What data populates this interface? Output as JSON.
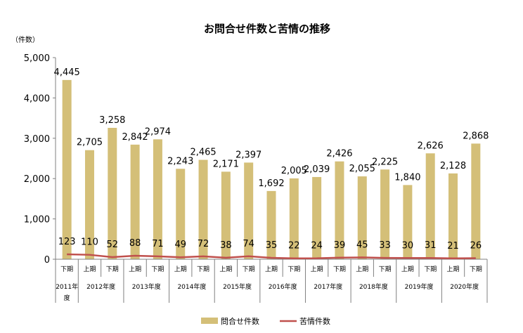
{
  "chart_data": {
    "type": "bar",
    "title": "お問合せ件数と苦情の推移",
    "ylabel": "（件数）",
    "ylim": [
      0,
      5000
    ],
    "yticks": [
      "0",
      "1,000",
      "2,000",
      "3,000",
      "4,000",
      "5,000"
    ],
    "grid": false,
    "legend_position": "bottom",
    "periods": [
      "下期",
      "上期",
      "下期",
      "上期",
      "下期",
      "上期",
      "下期",
      "上期",
      "下期",
      "上期",
      "下期",
      "上期",
      "下期",
      "上期",
      "下期",
      "上期",
      "下期",
      "上期",
      "下期"
    ],
    "years": [
      {
        "label": "2011年\n度",
        "span": 1
      },
      {
        "label": "2012年度",
        "span": 2
      },
      {
        "label": "2013年度",
        "span": 2
      },
      {
        "label": "2014年度",
        "span": 2
      },
      {
        "label": "2015年度",
        "span": 2
      },
      {
        "label": "2016年度",
        "span": 2
      },
      {
        "label": "2017年度",
        "span": 2
      },
      {
        "label": "2018年度",
        "span": 2
      },
      {
        "label": "2019年度",
        "span": 2
      },
      {
        "label": "2020年度",
        "span": 2
      }
    ],
    "series": [
      {
        "name": "問合せ件数",
        "type": "bar",
        "color": "#d4bf78",
        "values": [
          4445,
          2705,
          3258,
          2842,
          2974,
          2243,
          2465,
          2171,
          2397,
          1692,
          2005,
          2039,
          2426,
          2055,
          2225,
          1840,
          2626,
          2128,
          2868
        ],
        "labels": [
          "4,445",
          "2,705",
          "3,258",
          "2,842",
          "2,974",
          "2,243",
          "2,465",
          "2,171",
          "2,397",
          "1,692",
          "2,005",
          "2,039",
          "2,426",
          "2,055",
          "2,225",
          "1,840",
          "2,626",
          "2,128",
          "2,868"
        ]
      },
      {
        "name": "苦情件数",
        "type": "line",
        "color": "#c0504d",
        "values": [
          123,
          110,
          52,
          88,
          71,
          49,
          72,
          38,
          74,
          35,
          22,
          24,
          39,
          45,
          33,
          30,
          31,
          21,
          26
        ],
        "labels": [
          "123",
          "110",
          "52",
          "88",
          "71",
          "49",
          "72",
          "38",
          "74",
          "35",
          "22",
          "24",
          "39",
          "45",
          "33",
          "30",
          "31",
          "21",
          "26"
        ]
      }
    ]
  }
}
